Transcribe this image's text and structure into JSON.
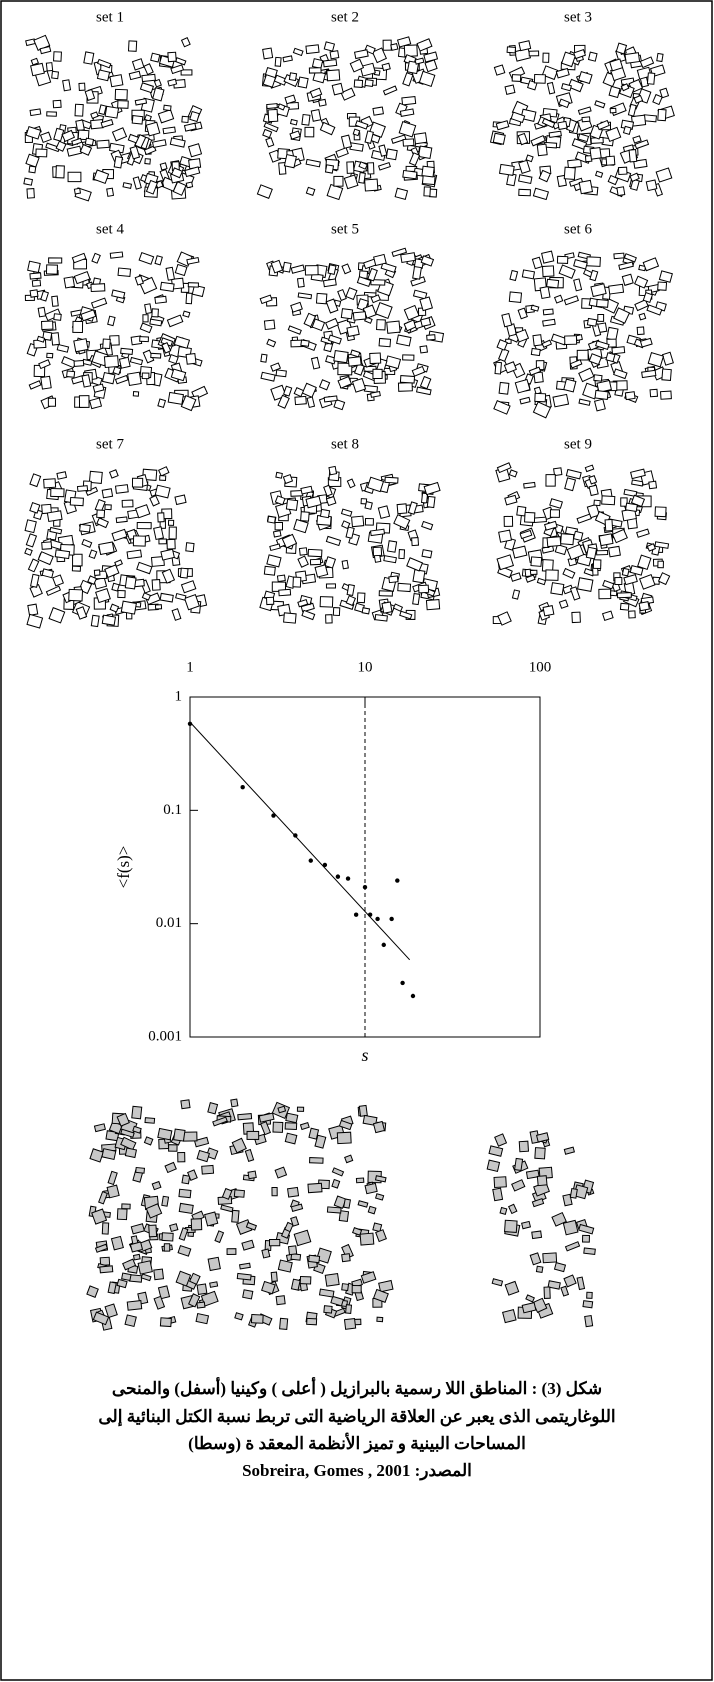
{
  "panels": [
    "set 1",
    "set 2",
    "set 3",
    "set 4",
    "set 5",
    "set 6",
    "set 7",
    "set 8",
    "set 9"
  ],
  "chart_data": {
    "type": "scatter",
    "x_label": "s",
    "y_label": "<f(s)>",
    "x": [
      1,
      2,
      3,
      4,
      4.9,
      5.9,
      7,
      8,
      8.9,
      10,
      10.7,
      11.8,
      12.8,
      14.2,
      15.3,
      16.4,
      18.8
    ],
    "y": [
      0.58,
      0.16,
      0.09,
      0.06,
      0.036,
      0.033,
      0.026,
      0.025,
      0.012,
      0.021,
      0.012,
      0.011,
      0.0065,
      0.011,
      0.024,
      0.003,
      0.0023
    ],
    "fit": {
      "x": [
        1,
        18
      ],
      "y": [
        0.6,
        0.0048
      ]
    },
    "reference_x": 10,
    "xlim": [
      1,
      100
    ],
    "ylim": [
      0.001,
      1
    ],
    "xticks": [
      1,
      10,
      100
    ],
    "yticks": [
      0.001,
      0.01,
      0.1,
      1
    ],
    "log_x": true,
    "log_y": true,
    "color": "#000000"
  },
  "caption": [
    "شكل (3) : المناطق اللا رسمية بالبرازيل ( أعلى ) وكينيا (أسفل) والمنحى",
    "اللوغاريتمى الذى يعبر عن العلاقة الرياضية التى تربط نسبة الكتل البنائية  إلى",
    "المساحات البينية  و تميز الأنظمة المعقد ة  (وسطا)",
    "المصدر: Sobreira, Gomes , 2001"
  ]
}
